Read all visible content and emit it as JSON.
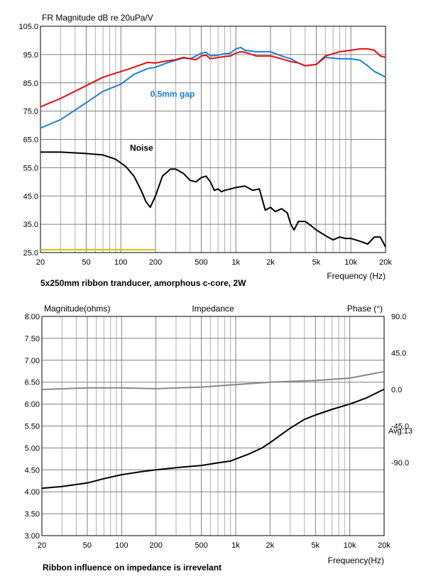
{
  "chart_data": [
    {
      "type": "line",
      "title": "FR Magnitude dB re 20uPa/V",
      "xlabel": "Frequency (Hz)",
      "ylabel": "",
      "xscale": "log",
      "xlim": [
        20,
        20000
      ],
      "ylim": [
        25,
        105
      ],
      "x_ticks": [
        20,
        50,
        100,
        200,
        500,
        1000,
        2000,
        5000,
        10000,
        20000
      ],
      "x_tick_labels": [
        "20",
        "50",
        "100",
        "200",
        "500",
        "1k",
        "2k",
        "5k",
        "10k",
        "20k"
      ],
      "y_ticks": [
        25,
        35,
        45,
        55,
        65,
        75,
        85,
        95,
        105
      ],
      "y_tick_labels": [
        "25.0",
        "35.0",
        "45.0",
        "55.0",
        "65.0",
        "75.0",
        "85.0",
        "95.0",
        "105.0"
      ],
      "grid": true,
      "caption": "5x250mm ribbon tranducer, amorphous c-core, 2W",
      "annotations": [
        {
          "text": "0.5mm gap",
          "x": 180,
          "y": 80,
          "color": "#1a7fd6"
        },
        {
          "text": "Noise",
          "x": 120,
          "y": 61,
          "color": "#000000"
        }
      ],
      "series": [
        {
          "name": "",
          "color": "#e01010",
          "x": [
            20,
            30,
            50,
            70,
            100,
            130,
            170,
            200,
            250,
            300,
            350,
            400,
            450,
            500,
            550,
            600,
            700,
            800,
            900,
            1000,
            1100,
            1200,
            1500,
            2000,
            2500,
            3000,
            3500,
            4000,
            5000,
            6000,
            8000,
            10000,
            12000,
            14000,
            16000,
            18000,
            20000
          ],
          "y": [
            76.5,
            79.5,
            84,
            87,
            89,
            90.5,
            92.2,
            92,
            92.7,
            93.2,
            94,
            93.5,
            93.2,
            94.5,
            94.8,
            93.5,
            94,
            94.3,
            94.5,
            95.5,
            96,
            95.8,
            94.5,
            94.5,
            93.5,
            92.5,
            92,
            91,
            91.5,
            94.5,
            96,
            96.5,
            97,
            97,
            96.5,
            94.5,
            94
          ]
        },
        {
          "name": "0.5mm gap",
          "color": "#1a7fd6",
          "x": [
            20,
            30,
            50,
            70,
            100,
            130,
            170,
            200,
            250,
            300,
            350,
            400,
            450,
            500,
            550,
            600,
            700,
            800,
            900,
            1000,
            1100,
            1200,
            1500,
            2000,
            2500,
            3000,
            3500,
            4000,
            5000,
            6000,
            8000,
            10000,
            12000,
            14000,
            16000,
            18000,
            20000
          ],
          "y": [
            69,
            72,
            78,
            82,
            84.5,
            88,
            90,
            90.5,
            92,
            93,
            93.8,
            93.5,
            94.5,
            95.5,
            95.8,
            94.5,
            94.8,
            95.3,
            95.5,
            97,
            97.5,
            96.5,
            96,
            96,
            94.5,
            93.5,
            92,
            91,
            91.5,
            94,
            93.5,
            93.5,
            93,
            91,
            89,
            88,
            87
          ]
        },
        {
          "name": "Noise",
          "color": "#000000",
          "x": [
            20,
            30,
            50,
            70,
            90,
            110,
            130,
            150,
            165,
            180,
            200,
            230,
            270,
            300,
            350,
            400,
            450,
            500,
            550,
            600,
            650,
            700,
            750,
            800,
            900,
            1000,
            1200,
            1400,
            1600,
            1800,
            2000,
            2200,
            2500,
            2800,
            3000,
            3200,
            3500,
            4000,
            4500,
            5000,
            6000,
            7000,
            8000,
            9000,
            10000,
            12000,
            14000,
            16000,
            18000,
            20000
          ],
          "y": [
            60.5,
            60.5,
            60,
            59.5,
            58,
            55.5,
            52,
            47,
            43,
            41,
            45,
            52,
            54.5,
            54.5,
            53,
            50.5,
            50,
            51.5,
            52,
            50,
            47,
            47.5,
            46.5,
            47,
            47.5,
            48,
            48.5,
            47,
            47.5,
            40,
            41,
            39.5,
            40.5,
            39,
            35,
            33,
            36,
            36,
            34.5,
            33,
            31,
            29.5,
            30.5,
            30,
            30,
            29,
            28,
            30.5,
            30.5,
            27
          ]
        },
        {
          "name": "",
          "color": "#d4c400",
          "x": [
            20,
            200
          ],
          "y": [
            26,
            26
          ]
        }
      ]
    },
    {
      "type": "line",
      "title": "Impedance",
      "xlabel": "Frequency(Hz)",
      "ylabel": "Magnitude(ohms)",
      "y2label": "Phase (°)",
      "xscale": "log",
      "xlim": [
        20,
        20000
      ],
      "ylim": [
        3.0,
        8.0
      ],
      "y2lim": [
        -180,
        90
      ],
      "x_ticks": [
        20,
        50,
        100,
        200,
        500,
        1000,
        2000,
        5000,
        10000,
        20000
      ],
      "x_tick_labels": [
        "20",
        "50",
        "100",
        "200",
        "500",
        "1k",
        "2k",
        "5k",
        "10k",
        "20k"
      ],
      "y_ticks": [
        3.0,
        3.5,
        4.0,
        4.5,
        5.0,
        5.5,
        6.0,
        6.5,
        7.0,
        7.5,
        8.0
      ],
      "y_tick_labels": [
        "3.00",
        "3.50",
        "4.00",
        "4.50",
        "5.00",
        "5.50",
        "6.00",
        "6.50",
        "7.00",
        "7.50",
        "8.00"
      ],
      "y2_ticks": [
        90,
        45,
        0,
        -45,
        -90
      ],
      "y2_tick_labels": [
        "90.0",
        "45.0",
        "0.0",
        "-45.0",
        "-90.0"
      ],
      "y2_note": "Avg:13",
      "grid": true,
      "caption": "Ribbon influence on impedance is irrevelant",
      "series": [
        {
          "name": "Magnitude",
          "color": "#000000",
          "axis": "left",
          "x": [
            20,
            30,
            50,
            70,
            100,
            150,
            200,
            300,
            500,
            700,
            900,
            1000,
            1300,
            1700,
            2000,
            3000,
            4000,
            5000,
            7000,
            10000,
            14000,
            20000
          ],
          "y": [
            4.08,
            4.12,
            4.2,
            4.3,
            4.39,
            4.46,
            4.5,
            4.55,
            4.6,
            4.66,
            4.7,
            4.75,
            4.86,
            5.0,
            5.12,
            5.45,
            5.65,
            5.75,
            5.88,
            6.0,
            6.14,
            6.34
          ]
        },
        {
          "name": "Phase",
          "color": "#888888",
          "axis": "right",
          "x": [
            20,
            50,
            100,
            200,
            500,
            1000,
            2000,
            5000,
            10000,
            20000
          ],
          "y": [
            0,
            2,
            2,
            1,
            3,
            6,
            9,
            11,
            14,
            22
          ]
        }
      ]
    }
  ]
}
